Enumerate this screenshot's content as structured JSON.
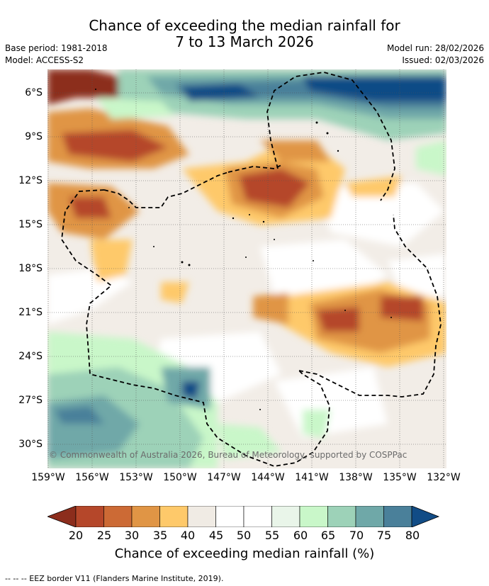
{
  "title_line1": "Chance of exceeding the median rainfall for",
  "title_line2": "7 to 13 March 2026",
  "base_period": "Base period: 1981-2018",
  "model": "Model: ACCESS-S2",
  "model_run": "Model run: 28/02/2026",
  "issued": "Issued: 02/03/2026",
  "copyright": "© Commonwealth of Australia 2026, Bureau of Meteorology, supported by COSPPac",
  "lat_labels": [
    "6°S",
    "9°S",
    "12°S",
    "15°S",
    "18°S",
    "21°S",
    "24°S",
    "27°S",
    "30°S"
  ],
  "lon_labels": [
    "159°W",
    "156°W",
    "153°W",
    "150°W",
    "147°W",
    "144°W",
    "141°W",
    "138°W",
    "135°W",
    "132°W"
  ],
  "colorbar": {
    "ticks": [
      "20",
      "25",
      "30",
      "35",
      "40",
      "45",
      "50",
      "55",
      "60",
      "65",
      "70",
      "75",
      "80"
    ],
    "title": "Chance of exceeding median rainfall (%)",
    "colors": [
      "#8c2d1c",
      "#b5472a",
      "#cc6a35",
      "#e09545",
      "#fec96a",
      "#f0ebe4",
      "#ffffff",
      "#ffffff",
      "#e9f5e9",
      "#c9f7c9",
      "#9dd2b8",
      "#6fa8a8",
      "#4a809a",
      "#114c86"
    ]
  },
  "footer": "--  --  -- EEZ border V11 (Flanders Marine Institute, 2019)."
}
